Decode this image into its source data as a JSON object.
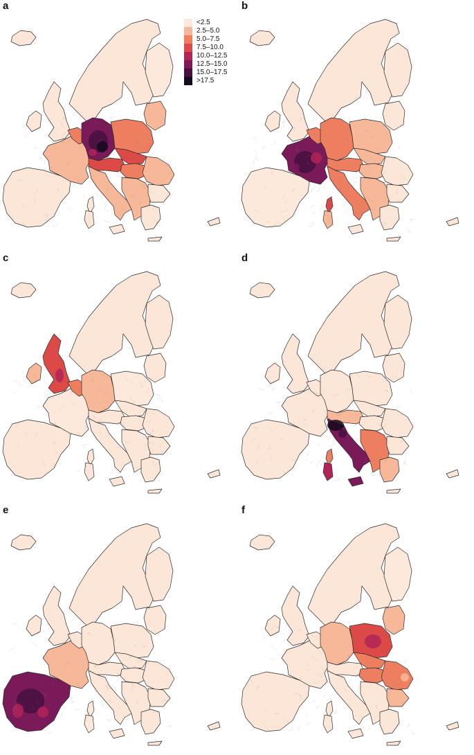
{
  "legend": {
    "items": [
      {
        "label": "<2.5",
        "color": "#fde9dc"
      },
      {
        "label": "2.5–5.0",
        "color": "#f6b899"
      },
      {
        "label": "5.0–7.5",
        "color": "#ed7e5f"
      },
      {
        "label": "7.5–10.0",
        "color": "#dc4a48"
      },
      {
        "label": "10.0–12.5",
        "color": "#b02457"
      },
      {
        "label": "12.5–15.0",
        "color": "#7a1a58"
      },
      {
        "label": "15.0–17.5",
        "color": "#45103f"
      },
      {
        "label": ">17.5",
        "color": "#150a1f"
      }
    ]
  },
  "colors": {
    "base": "#fbe6d8",
    "border": "#2a2a2a",
    "background": "#ffffff"
  },
  "panels": [
    {
      "label": "a",
      "hotspot": "germany"
    },
    {
      "label": "b",
      "hotspot": "france"
    },
    {
      "label": "c",
      "hotspot": "united-kingdom"
    },
    {
      "label": "d",
      "hotspot": "italy"
    },
    {
      "label": "e",
      "hotspot": "spain"
    },
    {
      "label": "f",
      "hotspot": "poland"
    }
  ]
}
